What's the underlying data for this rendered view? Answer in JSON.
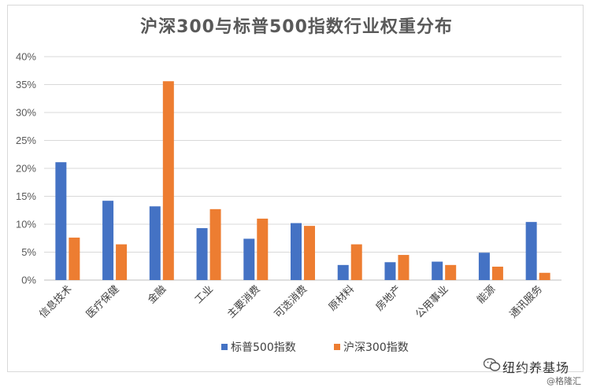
{
  "chart_data": {
    "type": "bar",
    "title": "沪深300与标普500指数行业权重分布",
    "categories": [
      "信息技术",
      "医疗保健",
      "金融",
      "工业",
      "主要消费",
      "可选消费",
      "原材料",
      "房地产",
      "公用事业",
      "能源",
      "通讯服务"
    ],
    "series": [
      {
        "name": "标普500指数",
        "color": "#4472c4",
        "values": [
          21.1,
          14.2,
          13.2,
          9.3,
          7.4,
          10.2,
          2.7,
          3.2,
          3.3,
          4.9,
          10.4
        ]
      },
      {
        "name": "沪深300指数",
        "color": "#ed7d31",
        "values": [
          7.6,
          6.4,
          35.6,
          12.7,
          11.0,
          9.7,
          6.4,
          4.5,
          2.7,
          2.4,
          1.3
        ]
      }
    ],
    "y_ticks": [
      "0%",
      "5%",
      "10%",
      "15%",
      "20%",
      "25%",
      "30%",
      "35%",
      "40%"
    ],
    "ylim": [
      0,
      40
    ],
    "grid": true,
    "legend_position": "bottom"
  },
  "watermark": {
    "brand": "纽约养基场",
    "sub": "@格隆汇",
    "icon": "wechat-icon"
  }
}
